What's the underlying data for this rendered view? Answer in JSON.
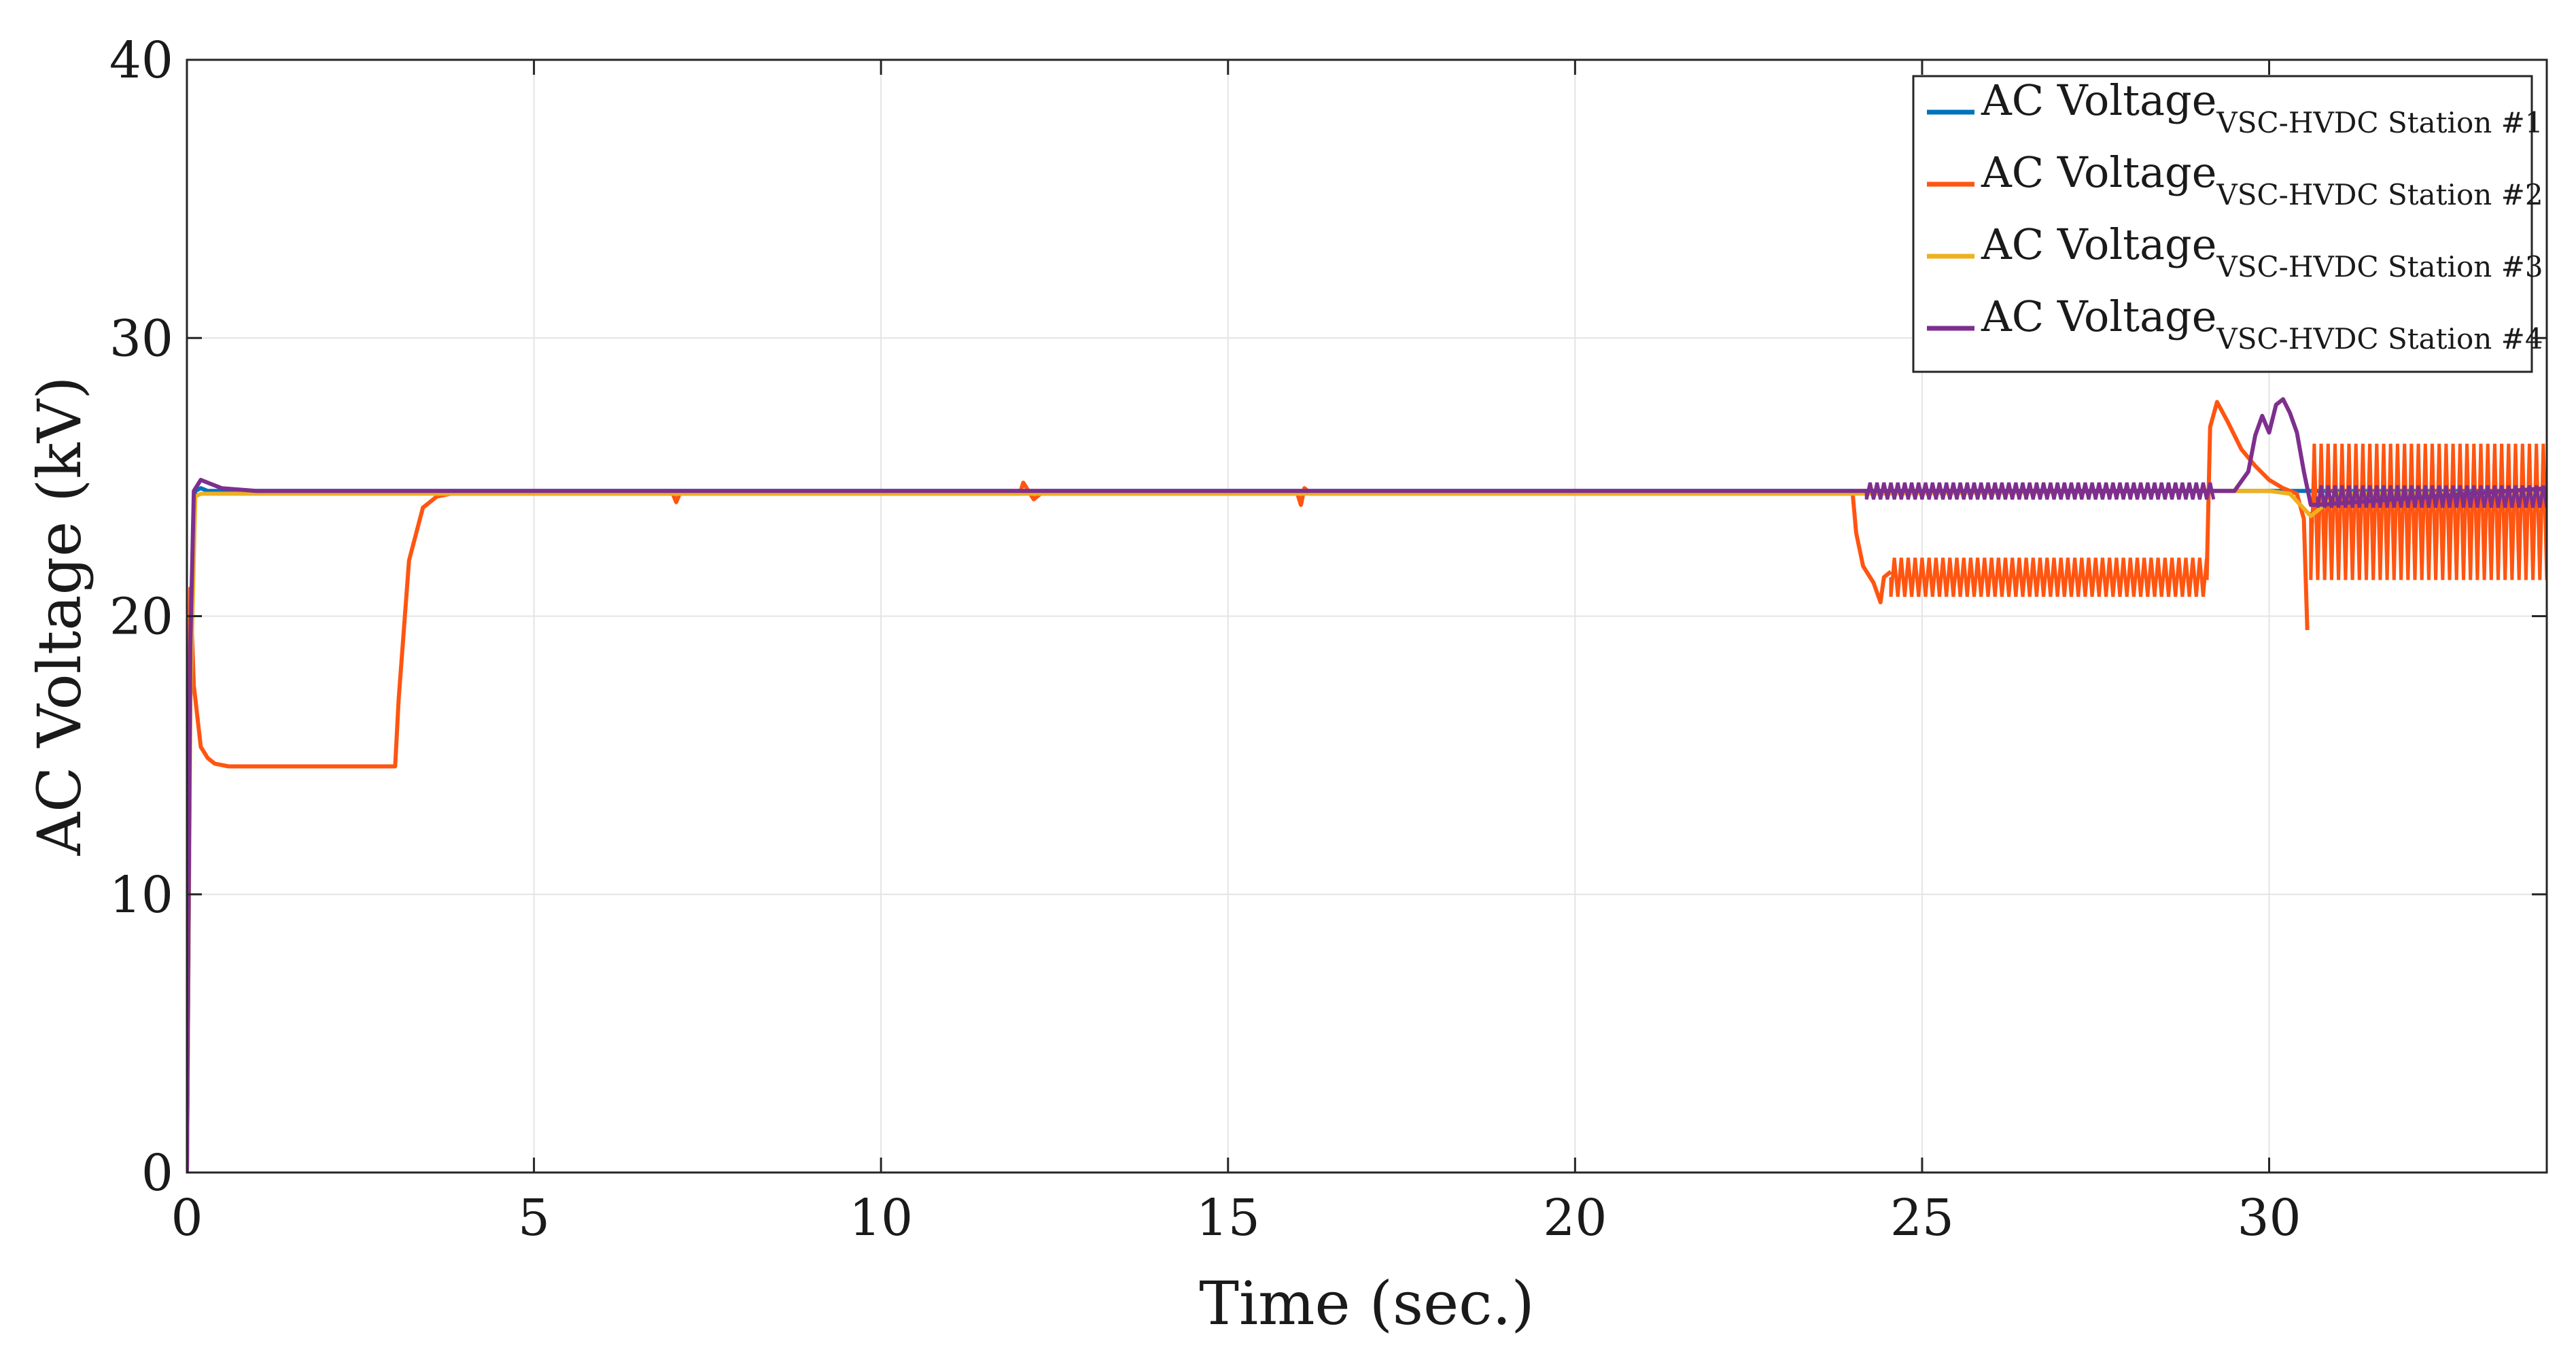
{
  "chart_data": {
    "type": "line",
    "title": "",
    "xlabel": "Time (sec.)",
    "ylabel": "AC Voltage (kV)",
    "xlim": [
      0,
      34
    ],
    "ylim": [
      0,
      40
    ],
    "xticks": [
      0,
      5,
      10,
      15,
      20,
      25,
      30
    ],
    "yticks": [
      0,
      10,
      20,
      30,
      40
    ],
    "grid": true,
    "legend_position": "top-right",
    "series": [
      {
        "name": "AC Voltage",
        "name_subscript": "VSC-HVDC Station #1",
        "color": "#0072BD",
        "x": [
          0,
          0.05,
          0.12,
          0.2,
          0.3,
          0.5,
          1,
          3,
          24,
          29,
          30,
          30.7,
          34
        ],
        "y": [
          0,
          18,
          24.5,
          24.6,
          24.5,
          24.5,
          24.5,
          24.5,
          24.5,
          24.5,
          24.5,
          24.5,
          24.5
        ]
      },
      {
        "name": "AC Voltage",
        "name_subscript": "VSC-HVDC Station #2",
        "color": "#FF5511",
        "x": [
          0,
          0.05,
          0.1,
          0.2,
          0.3,
          0.4,
          0.6,
          1,
          2,
          3.0,
          3.05,
          3.2,
          3.4,
          3.6,
          3.8,
          4.2,
          5,
          7,
          7.05,
          7.1,
          12,
          12.05,
          12.1,
          12.2,
          12.3,
          16,
          16.05,
          16.1,
          16.2,
          20,
          24,
          24.05,
          24.15,
          24.3,
          24.4,
          24.45,
          24.55,
          24.7,
          29.1,
          29.15,
          29.25,
          29.4,
          29.6,
          29.8,
          30.0,
          30.2,
          30.4,
          30.5,
          30.55,
          30.65,
          30.8,
          31,
          34
        ],
        "y": [
          0,
          21,
          17.5,
          15.3,
          14.9,
          14.7,
          14.6,
          14.6,
          14.6,
          14.6,
          17,
          22,
          23.9,
          24.3,
          24.4,
          24.4,
          24.4,
          24.4,
          24.1,
          24.4,
          24.4,
          24.8,
          24.6,
          24.2,
          24.4,
          24.4,
          24.0,
          24.6,
          24.4,
          24.4,
          24.4,
          23,
          21.8,
          21.2,
          20.5,
          21.4,
          21.6,
          21.3,
          21.3,
          26.8,
          27.7,
          27.0,
          26.0,
          25.4,
          24.9,
          24.6,
          24.4,
          23.5,
          19.5,
          22,
          24.5,
          23.7,
          23.7
        ],
        "oscillation": [
          {
            "x_range": [
              24.55,
              29.1
            ],
            "min": 20.7,
            "max": 22.1
          },
          {
            "x_range": [
              30.6,
              34
            ],
            "min": 21.3,
            "max": 26.2
          }
        ]
      },
      {
        "name": "AC Voltage",
        "name_subscript": "VSC-HVDC Station #3",
        "color": "#EDB120",
        "x": [
          0,
          0.05,
          0.12,
          0.2,
          0.3,
          0.5,
          1,
          24,
          29,
          30,
          30.3,
          30.6,
          31,
          34
        ],
        "y": [
          0,
          17,
          24.3,
          24.4,
          24.4,
          24.4,
          24.4,
          24.4,
          24.5,
          24.5,
          24.4,
          23.6,
          24.4,
          24.4
        ]
      },
      {
        "name": "AC Voltage",
        "name_subscript": "VSC-HVDC Station #4",
        "color": "#7E2F8E",
        "x": [
          0,
          0.05,
          0.1,
          0.2,
          0.3,
          0.5,
          1,
          24,
          24.2,
          29.5,
          29.7,
          29.8,
          29.9,
          30.0,
          30.1,
          30.2,
          30.3,
          30.4,
          30.5,
          30.6,
          30.7,
          34
        ],
        "y": [
          0,
          19,
          24.5,
          24.9,
          24.8,
          24.6,
          24.5,
          24.5,
          24.5,
          24.5,
          25.2,
          26.5,
          27.2,
          26.6,
          27.6,
          27.8,
          27.3,
          26.6,
          25.2,
          24.0,
          24.0,
          24.6
        ],
        "oscillation": [
          {
            "x_range": [
              24.2,
              29.2
            ],
            "min": 24.2,
            "max": 24.8
          },
          {
            "x_range": [
              30.7,
              34
            ],
            "min": 23.9,
            "max": 24.7
          }
        ]
      }
    ]
  }
}
